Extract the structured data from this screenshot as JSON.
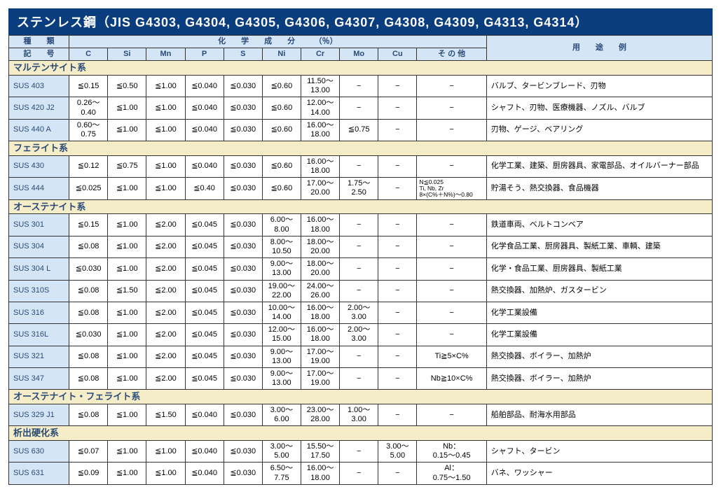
{
  "title": "ステンレス鋼（JIS G4303, G4304, G4305, G4306, G4307, G4308, G4309, G4313, G4314）",
  "headers": {
    "top_left_1": "種　　類",
    "top_left_2": "記　　号",
    "chem_header": "化　　学　　成　　分　　　（％）",
    "usage_header": "用　　途　　例",
    "cols": [
      "C",
      "Si",
      "Mn",
      "P",
      "S",
      "Ni",
      "Cr",
      "Mo",
      "Cu",
      "そ の 他"
    ]
  },
  "groups": [
    {
      "name": "マルテンサイト系",
      "rows": [
        {
          "label": "SUS 403",
          "c": "≦0.15",
          "si": "≦0.50",
          "mn": "≦1.00",
          "p": "≦0.040",
          "s": "≦0.030",
          "ni": "≦0.60",
          "cr": "11.50～\n13.00",
          "mo": "−",
          "cu": "−",
          "other": "−",
          "usage": "バルブ、タービンブレード、刃物"
        },
        {
          "label": "SUS 420 J2",
          "c": "0.26～\n0.40",
          "si": "≦1.00",
          "mn": "≦1.00",
          "p": "≦0.040",
          "s": "≦0.030",
          "ni": "≦0.60",
          "cr": "12.00～\n14.00",
          "mo": "−",
          "cu": "−",
          "other": "−",
          "usage": "シャフト、刃物、医療機器、ノズル、バルブ"
        },
        {
          "label": "SUS 440 A",
          "c": "0.60～\n0.75",
          "si": "≦1.00",
          "mn": "≦1.00",
          "p": "≦0.040",
          "s": "≦0.030",
          "ni": "≦0.60",
          "cr": "16.00～\n18.00",
          "mo": "≦0.75",
          "cu": "−",
          "other": "−",
          "usage": "刃物、ゲージ、ベアリング"
        }
      ]
    },
    {
      "name": "フェライト系",
      "rows": [
        {
          "label": "SUS 430",
          "c": "≦0.12",
          "si": "≦0.75",
          "mn": "≦1.00",
          "p": "≦0.040",
          "s": "≦0.030",
          "ni": "≦0.60",
          "cr": "16.00～\n18.00",
          "mo": "−",
          "cu": "−",
          "other": "−",
          "usage": "化学工業、建築、厨房器具、家電部品、オイルバーナー部品"
        },
        {
          "label": "SUS 444",
          "c": "≦0.025",
          "si": "≦1.00",
          "mn": "≦1.00",
          "p": "≦0.40",
          "s": "≦0.030",
          "ni": "≦0.60",
          "cr": "17.00～\n20.00",
          "mo": "1.75～\n2.50",
          "cu": "−",
          "other": "N≦0.025\nTi, Nb, Zr\n8×(C%＋N%)～0.80",
          "other_small": true,
          "usage": "貯湯そう、熱交換器、食品機器"
        }
      ]
    },
    {
      "name": "オーステナイト系",
      "rows": [
        {
          "label": "SUS 301",
          "c": "≦0.15",
          "si": "≦1.00",
          "mn": "≦2.00",
          "p": "≦0.045",
          "s": "≦0.030",
          "ni": "6.00～\n8.00",
          "cr": "16.00～\n18.00",
          "mo": "−",
          "cu": "−",
          "other": "−",
          "usage": "鉄道車両、ベルトコンベア"
        },
        {
          "label": "SUS 304",
          "c": "≦0.08",
          "si": "≦1.00",
          "mn": "≦2.00",
          "p": "≦0.045",
          "s": "≦0.030",
          "ni": "8.00～\n10.50",
          "cr": "18.00～\n20.00",
          "mo": "−",
          "cu": "−",
          "other": "−",
          "usage": "化学食品工業、厨房器具、製紙工業、車輌、建築"
        },
        {
          "label": "SUS 304 L",
          "c": "≦0.030",
          "si": "≦1.00",
          "mn": "≦2.00",
          "p": "≦0.045",
          "s": "≦0.030",
          "ni": "9.00～\n13.00",
          "cr": "18.00～\n20.00",
          "mo": "−",
          "cu": "−",
          "other": "−",
          "usage": "化学・食品工業、厨房器具、製紙工業"
        },
        {
          "label": "SUS 310S",
          "c": "≦0.08",
          "si": "≦1.50",
          "mn": "≦2.00",
          "p": "≦0.045",
          "s": "≦0.030",
          "ni": "19.00～\n22.00",
          "cr": "24.00～\n26.00",
          "mo": "−",
          "cu": "−",
          "other": "−",
          "usage": "熱交換器、加熱炉、ガスタービン"
        },
        {
          "label": "SUS 316",
          "c": "≦0.08",
          "si": "≦1.00",
          "mn": "≦2.00",
          "p": "≦0.045",
          "s": "≦0.030",
          "ni": "10.00～\n14.00",
          "cr": "16.00～\n18.00",
          "mo": "2.00～\n3.00",
          "cu": "−",
          "other": "−",
          "usage": "化学工業設備"
        },
        {
          "label": "SUS 316L",
          "c": "≦0.030",
          "si": "≦1.00",
          "mn": "≦2.00",
          "p": "≦0.045",
          "s": "≦0.030",
          "ni": "12.00～\n15.00",
          "cr": "16.00～\n18.00",
          "mo": "2.00～\n3.00",
          "cu": "−",
          "other": "−",
          "usage": "化学工業設備"
        },
        {
          "label": "SUS 321",
          "c": "≦0.08",
          "si": "≦1.00",
          "mn": "≦2.00",
          "p": "≦0.045",
          "s": "≦0.030",
          "ni": "9.00～\n13.00",
          "cr": "17.00～\n19.00",
          "mo": "−",
          "cu": "−",
          "other": "Ti≧5×C%",
          "usage": "熱交換器、ボイラー、加熱炉"
        },
        {
          "label": "SUS 347",
          "c": "≦0.08",
          "si": "≦1.00",
          "mn": "≦2.00",
          "p": "≦0.045",
          "s": "≦0.030",
          "ni": "9.00～\n13.00",
          "cr": "17.00～\n19.00",
          "mo": "−",
          "cu": "−",
          "other": "Nb≧10×C%",
          "usage": "熱交換器、ボイラー、加熱炉"
        }
      ]
    },
    {
      "name": "オーステナイト・フェライト系",
      "rows": [
        {
          "label": "SUS 329 J1",
          "c": "≦0.08",
          "si": "≦1.00",
          "mn": "≦1.50",
          "p": "≦0.040",
          "s": "≦0.030",
          "ni": "3.00～\n6.00",
          "cr": "23.00～\n28.00",
          "mo": "1.00～\n3.00",
          "cu": "−",
          "other": "−",
          "usage": "船舶部品、耐海水用部品"
        }
      ]
    },
    {
      "name": "析出硬化系",
      "rows": [
        {
          "label": "SUS 630",
          "c": "≦0.07",
          "si": "≦1.00",
          "mn": "≦1.00",
          "p": "≦0.040",
          "s": "≦0.030",
          "ni": "3.00～\n5.00",
          "cr": "15.50～\n17.50",
          "mo": "−",
          "cu": "3.00～\n5.00",
          "other": "Nb：\n0.15～0.45",
          "usage": "シャフト、タービン"
        },
        {
          "label": "SUS 631",
          "c": "≦0.09",
          "si": "≦1.00",
          "mn": "≦1.00",
          "p": "≦0.040",
          "s": "≦0.030",
          "ni": "6.50～\n7.75",
          "cr": "16.00～\n18.00",
          "mo": "−",
          "cu": "−",
          "other": "Al：\n0.75～1.50",
          "usage": "バネ、ワッシャー"
        }
      ]
    }
  ],
  "style": {
    "title_bg": "#0a3d7e",
    "title_fg": "#ffffff",
    "header_bg": "#d4e6f5",
    "header_fg": "#2a4a7a",
    "group_bg": "#f5edc8",
    "border": "#333333"
  }
}
